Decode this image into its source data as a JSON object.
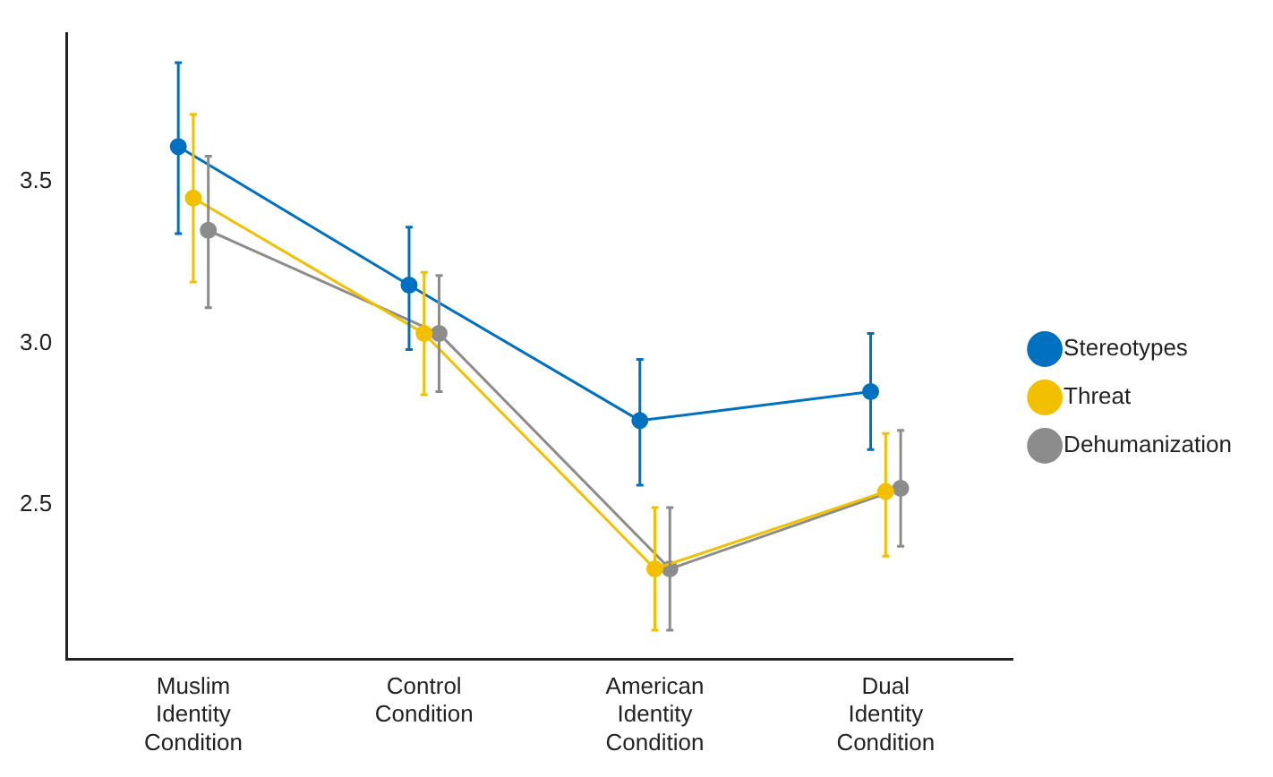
{
  "chart_data": {
    "type": "line",
    "categories": [
      "Muslim Identity Condition",
      "Control Condition",
      "American Identity Condition",
      "Dual Identity Condition"
    ],
    "series": [
      {
        "name": "Stereotypes",
        "color": "#0070c0",
        "values": [
          3.61,
          3.18,
          2.76,
          2.85
        ],
        "errors": [
          [
            3.34,
            3.87
          ],
          [
            2.98,
            3.36
          ],
          [
            2.56,
            2.95
          ],
          [
            2.67,
            3.03
          ]
        ]
      },
      {
        "name": "Threat",
        "color": "#f2c000",
        "values": [
          3.45,
          3.03,
          2.3,
          2.54
        ],
        "errors": [
          [
            3.19,
            3.71
          ],
          [
            2.84,
            3.22
          ],
          [
            2.11,
            2.49
          ],
          [
            2.34,
            2.72
          ]
        ]
      },
      {
        "name": "Dehumanization",
        "color": "#8c8c8c",
        "values": [
          3.35,
          3.03,
          2.3,
          2.55
        ],
        "errors": [
          [
            3.11,
            3.58
          ],
          [
            2.85,
            3.21
          ],
          [
            2.11,
            2.49
          ],
          [
            2.37,
            2.73
          ]
        ]
      }
    ],
    "ylim": [
      2.02,
      3.96
    ],
    "yticks": [
      {
        "value": 2.5,
        "label": "2.5"
      },
      {
        "value": 3,
        "label": "3.0"
      },
      {
        "value": 3.5,
        "label": "3.5"
      }
    ],
    "grid": false,
    "legend": "right",
    "marker": "circle",
    "line_style": "solid"
  }
}
